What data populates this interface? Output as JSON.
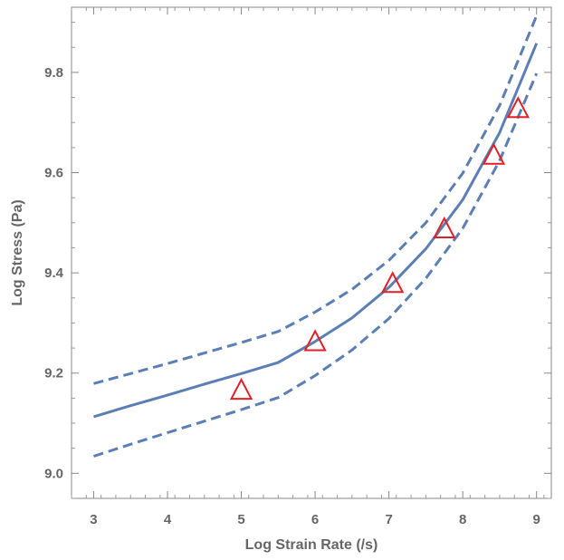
{
  "chart_data": {
    "type": "line",
    "title": "",
    "xlabel": "Log Strain Rate (/s)",
    "ylabel": "Log Stress (Pa)",
    "xlim": [
      2.7,
      9.2
    ],
    "ylim": [
      8.95,
      9.93
    ],
    "x_ticks": [
      3,
      4,
      5,
      6,
      7,
      8,
      9
    ],
    "y_ticks": [
      9.0,
      9.2,
      9.4,
      9.6,
      9.8
    ],
    "x_tick_labels": [
      "3",
      "4",
      "5",
      "6",
      "7",
      "8",
      "9"
    ],
    "y_tick_labels": [
      "9.0",
      "9.2",
      "9.4",
      "9.6",
      "9.8"
    ],
    "grid": false,
    "frame": true,
    "series": [
      {
        "kind": "line",
        "style": "solid",
        "color": "#5b7fb5",
        "x": [
          3,
          3.5,
          4,
          4.5,
          5,
          5.5,
          6,
          6.5,
          7,
          7.5,
          8,
          8.5,
          9
        ],
        "y": [
          9.113,
          9.135,
          9.156,
          9.178,
          9.199,
          9.221,
          9.263,
          9.31,
          9.371,
          9.448,
          9.546,
          9.68,
          9.858
        ]
      },
      {
        "kind": "line",
        "style": "dashed",
        "color": "#5b7fb5",
        "x": [
          3,
          3.5,
          4,
          4.5,
          5,
          5.5,
          6,
          6.5,
          7,
          7.5,
          8,
          8.5,
          9
        ],
        "y": [
          9.179,
          9.199,
          9.219,
          9.24,
          9.261,
          9.283,
          9.322,
          9.367,
          9.425,
          9.5,
          9.599,
          9.734,
          9.913
        ]
      },
      {
        "kind": "line",
        "style": "dashed",
        "color": "#5b7fb5",
        "x": [
          3,
          3.5,
          4,
          4.5,
          5,
          5.5,
          6,
          6.5,
          7,
          7.5,
          8,
          8.5,
          9
        ],
        "y": [
          9.034,
          9.058,
          9.081,
          9.104,
          9.127,
          9.151,
          9.195,
          9.246,
          9.309,
          9.389,
          9.489,
          9.624,
          9.798
        ]
      },
      {
        "kind": "scatter",
        "marker": "triangle",
        "color": "#e01f26",
        "x": [
          5.0,
          6.0,
          7.05,
          7.75,
          8.42,
          8.75
        ],
        "y": [
          9.165,
          9.262,
          9.378,
          9.487,
          9.634,
          9.727
        ]
      }
    ]
  }
}
